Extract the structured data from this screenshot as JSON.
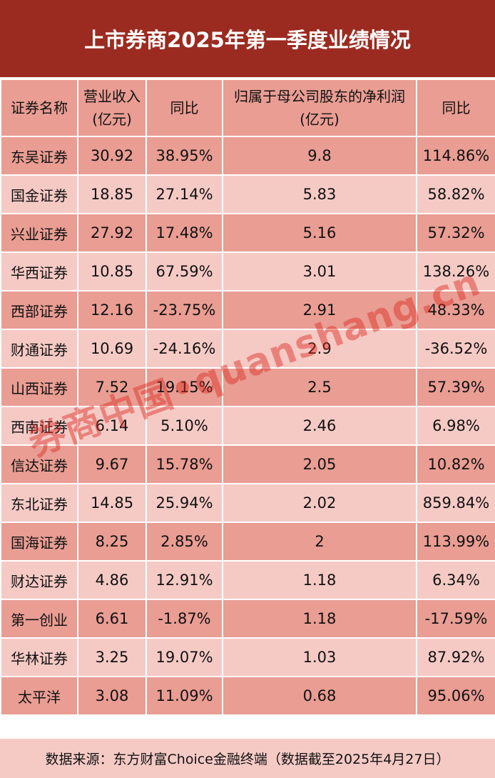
{
  "title": "上市券商2025年第一季度业绩情况",
  "headers": {
    "name": "证券名称",
    "revenue": "营业收入",
    "revenue_unit": "(亿元)",
    "rev_yoy": "同比",
    "profit": "归属于母公司股东的净利润",
    "profit_unit": "(亿元)",
    "profit_yoy": "同比"
  },
  "rows": [
    [
      "东吴证券",
      "30.92",
      "38.95%",
      "9.8",
      "114.86%"
    ],
    [
      "国金证券",
      "18.85",
      "27.14%",
      "5.83",
      "58.82%"
    ],
    [
      "兴业证券",
      "27.92",
      "17.48%",
      "5.16",
      "57.32%"
    ],
    [
      "华西证券",
      "10.85",
      "67.59%",
      "3.01",
      "138.26%"
    ],
    [
      "西部证券",
      "12.16",
      "-23.75%",
      "2.91",
      "48.33%"
    ],
    [
      "财通证券",
      "10.69",
      "-24.16%",
      "2.9",
      "-36.52%"
    ],
    [
      "山西证券",
      "7.52",
      "19.15%",
      "2.5",
      "57.39%"
    ],
    [
      "西南证券",
      "6.14",
      "5.10%",
      "2.46",
      "6.98%"
    ],
    [
      "信达证券",
      "9.67",
      "15.78%",
      "2.05",
      "10.82%"
    ],
    [
      "东北证券",
      "14.85",
      "25.94%",
      "2.02",
      "859.84%"
    ],
    [
      "国海证券",
      "8.25",
      "2.85%",
      "2",
      "113.99%"
    ],
    [
      "财达证券",
      "4.86",
      "12.91%",
      "1.18",
      "6.34%"
    ],
    [
      "第一创业",
      "6.61",
      "-1.87%",
      "1.18",
      "-17.59%"
    ],
    [
      "华林证券",
      "3.25",
      "19.07%",
      "1.03",
      "87.92%"
    ],
    [
      "太平洋",
      "3.08",
      "11.09%",
      "0.68",
      "95.06%"
    ]
  ],
  "footer": "数据来源：东方财富Choice金融终端（数据截至2025年4月27日）",
  "watermark": "券商中国•quanshang.cn",
  "colors": {
    "title_bg": "#9b2b20",
    "row_dark": "#e99d93",
    "row_light": "#f5cac5"
  }
}
